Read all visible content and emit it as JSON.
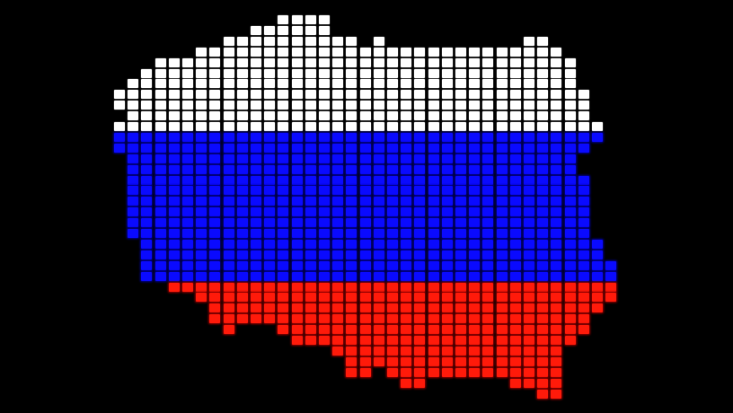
{
  "image": {
    "subject": "pixel-grid-map",
    "colors": {
      "background": "#000000",
      "top_band": "#ffffff",
      "middle_band": "#0a0aff",
      "bottom_band": "#ff1a0a"
    }
  }
}
